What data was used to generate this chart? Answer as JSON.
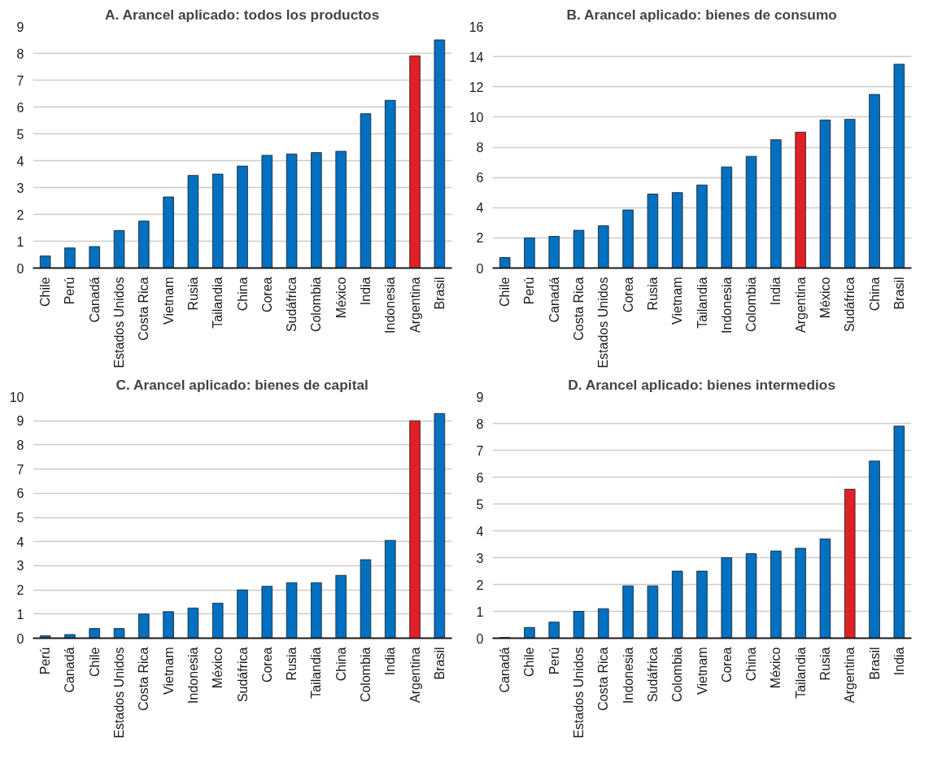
{
  "chart_data": [
    {
      "type": "bar",
      "title": "A. Arancel aplicado: todos los productos",
      "categories": [
        "Chile",
        "Perú",
        "Canadá",
        "Estados Unidos",
        "Costa Rica",
        "Vietnam",
        "Rusia",
        "Tailandia",
        "China",
        "Corea",
        "Sudáfrica",
        "Colombia",
        "México",
        "India",
        "Indonesia",
        "Argentina",
        "Brasil"
      ],
      "values": [
        0.45,
        0.75,
        0.8,
        1.4,
        1.75,
        2.65,
        3.45,
        3.5,
        3.8,
        4.2,
        4.25,
        4.3,
        4.35,
        5.75,
        6.25,
        7.9,
        8.5
      ],
      "colors": [
        "#0070c0",
        "#0070c0",
        "#0070c0",
        "#0070c0",
        "#0070c0",
        "#0070c0",
        "#0070c0",
        "#0070c0",
        "#0070c0",
        "#0070c0",
        "#0070c0",
        "#0070c0",
        "#0070c0",
        "#0070c0",
        "#0070c0",
        "#e02027",
        "#0070c0"
      ],
      "ylim": [
        0,
        9
      ],
      "yticks": [
        0,
        1,
        2,
        3,
        4,
        5,
        6,
        7,
        8,
        9
      ],
      "grid": "y"
    },
    {
      "type": "bar",
      "title": "B. Arancel aplicado: bienes de consumo",
      "categories": [
        "Chile",
        "Perú",
        "Canadá",
        "Costa Rica",
        "Estados Unidos",
        "Corea",
        "Rusia",
        "Vietnam",
        "Tailandia",
        "Indonesia",
        "Colombia",
        "India",
        "Argentina",
        "México",
        "Sudáfrica",
        "China",
        "Brasil"
      ],
      "values": [
        0.7,
        2.0,
        2.1,
        2.5,
        2.8,
        3.85,
        4.9,
        5.0,
        5.5,
        6.7,
        7.4,
        8.5,
        9.0,
        9.8,
        9.85,
        11.5,
        13.5
      ],
      "colors": [
        "#0070c0",
        "#0070c0",
        "#0070c0",
        "#0070c0",
        "#0070c0",
        "#0070c0",
        "#0070c0",
        "#0070c0",
        "#0070c0",
        "#0070c0",
        "#0070c0",
        "#0070c0",
        "#e02027",
        "#0070c0",
        "#0070c0",
        "#0070c0",
        "#0070c0"
      ],
      "ylim": [
        0,
        16
      ],
      "yticks": [
        0,
        2,
        4,
        6,
        8,
        10,
        12,
        14,
        16
      ],
      "grid": "y"
    },
    {
      "type": "bar",
      "title": "C. Arancel aplicado: bienes de capital",
      "categories": [
        "Perú",
        "Canadá",
        "Chile",
        "Estados Unidos",
        "Costa Rica",
        "Vietnam",
        "Indonesia",
        "México",
        "Sudáfrica",
        "Corea",
        "Rusia",
        "Tailandia",
        "China",
        "Colombia",
        "India",
        "Argentina",
        "Brasil"
      ],
      "values": [
        0.1,
        0.15,
        0.4,
        0.4,
        1.0,
        1.1,
        1.25,
        1.45,
        2.0,
        2.15,
        2.3,
        2.3,
        2.6,
        3.25,
        4.05,
        9.0,
        9.3
      ],
      "colors": [
        "#0070c0",
        "#0070c0",
        "#0070c0",
        "#0070c0",
        "#0070c0",
        "#0070c0",
        "#0070c0",
        "#0070c0",
        "#0070c0",
        "#0070c0",
        "#0070c0",
        "#0070c0",
        "#0070c0",
        "#0070c0",
        "#0070c0",
        "#e02027",
        "#0070c0"
      ],
      "ylim": [
        0,
        10
      ],
      "yticks": [
        0,
        1,
        2,
        3,
        4,
        5,
        6,
        7,
        8,
        9,
        10
      ],
      "grid": "y"
    },
    {
      "type": "bar",
      "title": "D. Arancel aplicado: bienes intermedios",
      "categories": [
        "Canadá",
        "Chile",
        "Perú",
        "Estados Unidos",
        "Costa Rica",
        "Indonesia",
        "Sudáfrica",
        "Colombia",
        "Vietnam",
        "Corea",
        "China",
        "México",
        "Tailandia",
        "Rusia",
        "Argentina",
        "Brasil",
        "India"
      ],
      "values": [
        0.03,
        0.4,
        0.6,
        1.0,
        1.1,
        1.95,
        1.95,
        2.5,
        2.5,
        3.0,
        3.15,
        3.25,
        3.35,
        3.7,
        5.55,
        6.6,
        7.9
      ],
      "colors": [
        "#0070c0",
        "#0070c0",
        "#0070c0",
        "#0070c0",
        "#0070c0",
        "#0070c0",
        "#0070c0",
        "#0070c0",
        "#0070c0",
        "#0070c0",
        "#0070c0",
        "#0070c0",
        "#0070c0",
        "#0070c0",
        "#e02027",
        "#0070c0",
        "#0070c0"
      ],
      "ylim": [
        0,
        9
      ],
      "yticks": [
        0,
        1,
        2,
        3,
        4,
        5,
        6,
        7,
        8,
        9
      ],
      "grid": "y"
    }
  ]
}
